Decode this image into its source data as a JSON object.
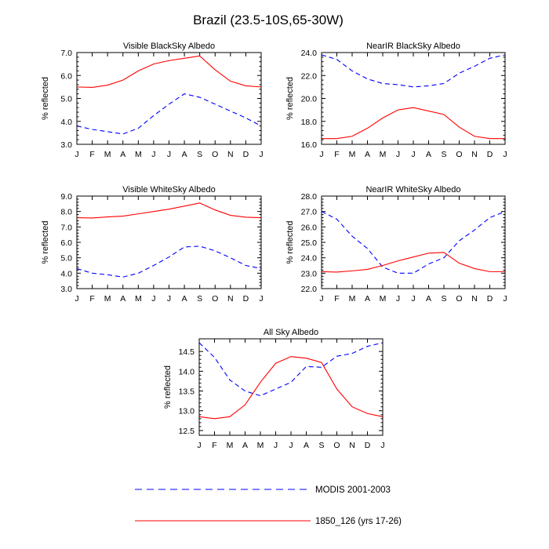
{
  "figure_title": "Brazil (23.5-10S,65-30W)",
  "series_styles": {
    "modis": {
      "color": "#0000ff",
      "dashed": true
    },
    "model": {
      "color": "#ff0000",
      "dashed": false
    }
  },
  "legend": {
    "items": [
      {
        "key": "modis",
        "label": "MODIS 2001-2003"
      },
      {
        "key": "model",
        "label": "1850_126 (yrs 17-26)"
      }
    ]
  },
  "chart_data": [
    {
      "type": "line",
      "title": "Visible BlackSky Albedo",
      "ylabel": "% reflected",
      "categories": [
        "J",
        "F",
        "M",
        "A",
        "M",
        "J",
        "J",
        "A",
        "S",
        "O",
        "N",
        "D",
        "J"
      ],
      "ylim": [
        3.0,
        7.0
      ],
      "yticks": [
        3.0,
        4.0,
        5.0,
        6.0,
        7.0
      ],
      "ytick_labels": [
        "3.0",
        "4.0",
        "5.0",
        "6.0",
        "7.0"
      ],
      "series": [
        {
          "key": "modis",
          "values": [
            3.8,
            3.65,
            3.55,
            3.45,
            3.7,
            4.25,
            4.75,
            5.2,
            5.05,
            4.75,
            4.45,
            4.15,
            3.8
          ]
        },
        {
          "key": "model",
          "values": [
            5.5,
            5.48,
            5.58,
            5.8,
            6.2,
            6.5,
            6.65,
            6.75,
            6.85,
            6.25,
            5.75,
            5.55,
            5.5
          ]
        }
      ]
    },
    {
      "type": "line",
      "title": "NearIR BlackSky Albedo",
      "ylabel": "% reflected",
      "categories": [
        "J",
        "F",
        "M",
        "A",
        "M",
        "J",
        "J",
        "A",
        "S",
        "O",
        "N",
        "D",
        "J"
      ],
      "ylim": [
        16.0,
        24.0
      ],
      "yticks": [
        16.0,
        18.0,
        20.0,
        22.0,
        24.0
      ],
      "ytick_labels": [
        "16.0",
        "18.0",
        "20.0",
        "22.0",
        "24.0"
      ],
      "series": [
        {
          "key": "modis",
          "values": [
            23.8,
            23.4,
            22.4,
            21.7,
            21.3,
            21.2,
            21.0,
            21.1,
            21.3,
            22.2,
            22.8,
            23.5,
            23.8
          ]
        },
        {
          "key": "model",
          "values": [
            16.5,
            16.5,
            16.7,
            17.4,
            18.3,
            19.0,
            19.2,
            18.9,
            18.6,
            17.5,
            16.7,
            16.5,
            16.5
          ]
        }
      ]
    },
    {
      "type": "line",
      "title": "Visible WhiteSky Albedo",
      "ylabel": "% reflected",
      "categories": [
        "J",
        "F",
        "M",
        "A",
        "M",
        "J",
        "J",
        "A",
        "S",
        "O",
        "N",
        "D",
        "J"
      ],
      "ylim": [
        3.0,
        9.0
      ],
      "yticks": [
        3.0,
        4.0,
        5.0,
        6.0,
        7.0,
        8.0,
        9.0
      ],
      "ytick_labels": [
        "3.0",
        "4.0",
        "5.0",
        "6.0",
        "7.0",
        "8.0",
        "9.0"
      ],
      "series": [
        {
          "key": "modis",
          "values": [
            4.3,
            4.0,
            3.9,
            3.75,
            4.0,
            4.5,
            5.05,
            5.7,
            5.75,
            5.45,
            5.0,
            4.5,
            4.3
          ]
        },
        {
          "key": "model",
          "values": [
            7.6,
            7.58,
            7.65,
            7.7,
            7.85,
            8.0,
            8.15,
            8.35,
            8.55,
            8.1,
            7.75,
            7.63,
            7.6
          ]
        }
      ]
    },
    {
      "type": "line",
      "title": "NearIR WhiteSky Albedo",
      "ylabel": "% reflected",
      "categories": [
        "J",
        "F",
        "M",
        "A",
        "M",
        "J",
        "J",
        "A",
        "S",
        "O",
        "N",
        "D",
        "J"
      ],
      "ylim": [
        22.0,
        28.0
      ],
      "yticks": [
        22.0,
        23.0,
        24.0,
        25.0,
        26.0,
        27.0,
        28.0
      ],
      "ytick_labels": [
        "22.0",
        "23.0",
        "24.0",
        "25.0",
        "26.0",
        "27.0",
        "28.0"
      ],
      "series": [
        {
          "key": "modis",
          "values": [
            27.0,
            26.5,
            25.4,
            24.6,
            23.4,
            23.0,
            23.0,
            23.6,
            24.0,
            25.1,
            25.8,
            26.6,
            27.0
          ]
        },
        {
          "key": "model",
          "values": [
            23.1,
            23.07,
            23.15,
            23.25,
            23.5,
            23.8,
            24.05,
            24.3,
            24.35,
            23.65,
            23.3,
            23.1,
            23.1
          ]
        }
      ]
    },
    {
      "type": "line",
      "title": "All Sky Albedo",
      "ylabel": "% reflected",
      "categories": [
        "J",
        "F",
        "M",
        "A",
        "M",
        "J",
        "J",
        "A",
        "S",
        "O",
        "N",
        "D",
        "J"
      ],
      "ylim": [
        12.38,
        14.82
      ],
      "yticks": [
        12.5,
        13.0,
        13.5,
        14.0,
        14.5
      ],
      "ytick_labels": [
        "12.5",
        "13.0",
        "13.5",
        "14.0",
        "14.5"
      ],
      "series": [
        {
          "key": "modis",
          "values": [
            14.72,
            14.35,
            13.78,
            13.5,
            13.38,
            13.55,
            13.72,
            14.12,
            14.1,
            14.38,
            14.45,
            14.63,
            14.72
          ]
        },
        {
          "key": "model",
          "values": [
            12.85,
            12.8,
            12.85,
            13.15,
            13.72,
            14.2,
            14.37,
            14.33,
            14.22,
            13.55,
            13.1,
            12.93,
            12.85
          ]
        }
      ]
    }
  ]
}
